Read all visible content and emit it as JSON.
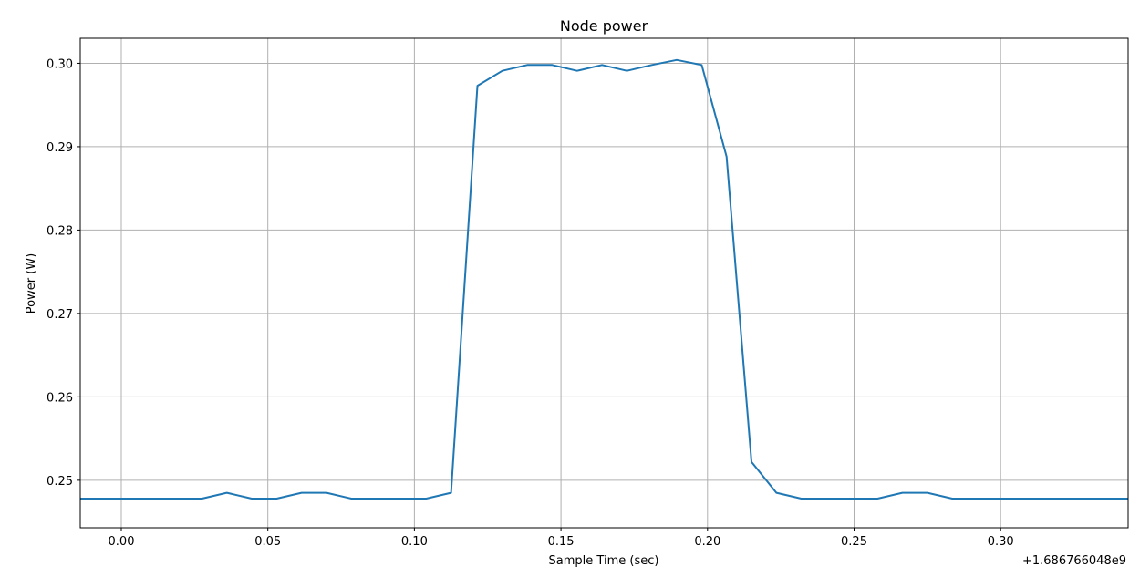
{
  "chart_data": {
    "type": "line",
    "title": "Node power",
    "xlabel": "Sample Time (sec)",
    "ylabel": "Power (W)",
    "x_offset_label": "+1.686766048e9",
    "xlim": [
      -0.014,
      0.3435
    ],
    "ylim": [
      0.2443,
      0.303
    ],
    "grid": true,
    "line_color": "#1f77b4",
    "grid_color": "#b0b0b0",
    "x_ticks": [
      0.0,
      0.05,
      0.1,
      0.15,
      0.2,
      0.25,
      0.3
    ],
    "x_tick_labels": [
      "0.00",
      "0.05",
      "0.10",
      "0.15",
      "0.20",
      "0.25",
      "0.30"
    ],
    "y_ticks": [
      0.25,
      0.26,
      0.27,
      0.28,
      0.29,
      0.3
    ],
    "y_tick_labels": [
      "0.25",
      "0.26",
      "0.27",
      "0.28",
      "0.29",
      "0.30"
    ],
    "series": [
      {
        "x": [
          -0.014,
          0.0,
          0.0085,
          0.017,
          0.0275,
          0.036,
          0.0445,
          0.053,
          0.0615,
          0.07,
          0.0785,
          0.087,
          0.0955,
          0.104,
          0.1125,
          0.1215,
          0.13,
          0.1385,
          0.147,
          0.1555,
          0.164,
          0.1725,
          0.181,
          0.1895,
          0.198,
          0.2065,
          0.215,
          0.2235,
          0.232,
          0.2405,
          0.249,
          0.258,
          0.2665,
          0.275,
          0.2835,
          0.292,
          0.3005,
          0.309,
          0.3175,
          0.326,
          0.3435
        ],
        "y": [
          0.2478,
          0.2478,
          0.2478,
          0.2478,
          0.2478,
          0.2485,
          0.2478,
          0.2478,
          0.2485,
          0.2485,
          0.2478,
          0.2478,
          0.2478,
          0.2478,
          0.2485,
          0.2973,
          0.2991,
          0.2998,
          0.2998,
          0.2991,
          0.2998,
          0.2991,
          0.2998,
          0.3004,
          0.2998,
          0.2888,
          0.2522,
          0.2485,
          0.2478,
          0.2478,
          0.2478,
          0.2478,
          0.2485,
          0.2485,
          0.2478,
          0.2478,
          0.2478,
          0.2478,
          0.2478,
          0.2478,
          0.2478
        ]
      }
    ]
  }
}
